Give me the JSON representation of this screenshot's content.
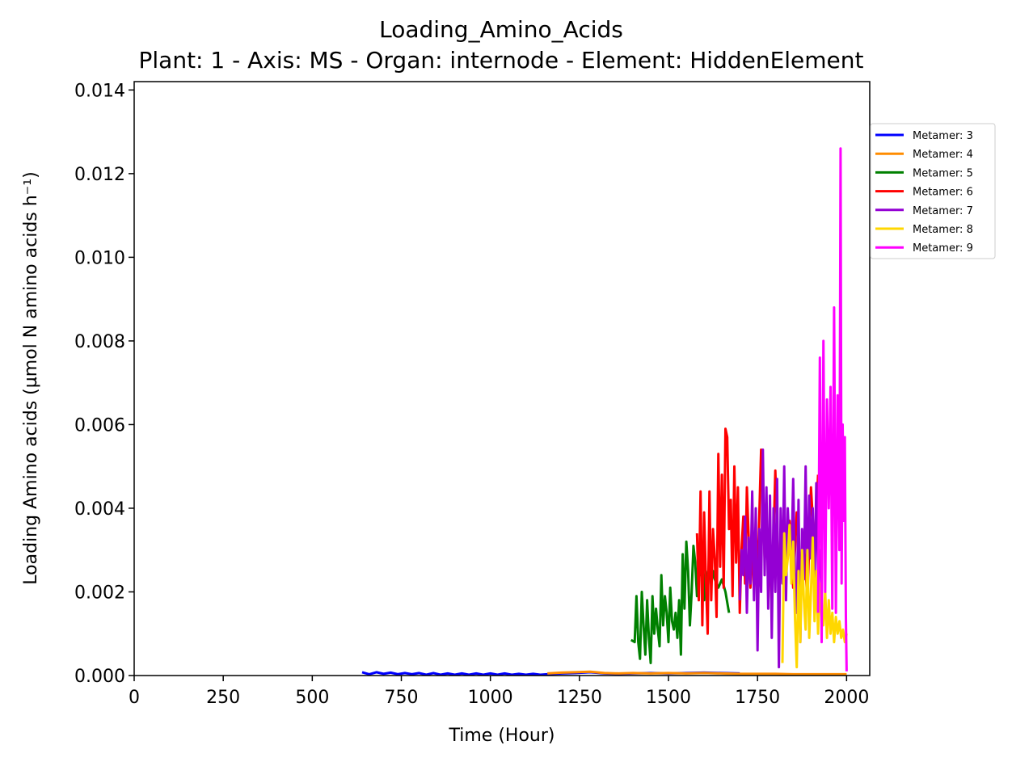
{
  "chart_data": {
    "type": "line",
    "title": "Loading_Amino_Acids",
    "subtitle": "Plant: 1 - Axis: MS - Organ: internode - Element: HiddenElement",
    "xlabel": "Time (Hour)",
    "ylabel": "Loading Amino acids (µmol N amino acids h⁻¹)",
    "xlim": [
      0,
      2065
    ],
    "ylim": [
      0,
      0.0142
    ],
    "xticks": [
      "0",
      "250",
      "500",
      "750",
      "1000",
      "1250",
      "1500",
      "1750",
      "2000"
    ],
    "yticks": [
      "0.000",
      "0.002",
      "0.004",
      "0.006",
      "0.008",
      "0.010",
      "0.012",
      "0.014"
    ],
    "grid": false,
    "legend_position": "right-outside",
    "series": [
      {
        "name": "Metamer: 3",
        "color": "#0000ff",
        "x": [
          640,
          660,
          680,
          700,
          720,
          740,
          760,
          780,
          800,
          820,
          840,
          860,
          880,
          900,
          920,
          940,
          960,
          980,
          1000,
          1020,
          1040,
          1060,
          1080,
          1100,
          1120,
          1140,
          1160,
          1200,
          1240,
          1280,
          1320,
          1360,
          1400,
          1450,
          1500,
          1550,
          1600,
          1650,
          1700
        ],
        "y": [
          8e-05,
          3e-05,
          8e-05,
          4e-05,
          7e-05,
          3e-05,
          6e-05,
          3e-05,
          6e-05,
          2e-05,
          6e-05,
          2e-05,
          5e-05,
          2e-05,
          5e-05,
          2e-05,
          5e-05,
          2e-05,
          5e-05,
          2e-05,
          5e-05,
          2e-05,
          4e-05,
          2e-05,
          4e-05,
          2e-05,
          3e-05,
          5e-05,
          6e-05,
          8e-05,
          5e-05,
          4e-05,
          5e-05,
          6e-05,
          5e-05,
          6e-05,
          7e-05,
          6e-05,
          5e-05
        ]
      },
      {
        "name": "Metamer: 4",
        "color": "#ff8c00",
        "x": [
          1160,
          1200,
          1240,
          1280,
          1320,
          1360,
          1400,
          1450,
          1500,
          1550,
          1600,
          1650,
          1700,
          1750,
          1800,
          1850,
          1900,
          1950,
          2000
        ],
        "y": [
          5e-05,
          7e-05,
          8e-05,
          9e-05,
          6e-05,
          5e-05,
          6e-05,
          5e-05,
          6e-05,
          5e-05,
          6e-05,
          5e-05,
          4e-05,
          4e-05,
          4e-05,
          3e-05,
          3e-05,
          3e-05,
          3e-05
        ]
      },
      {
        "name": "Metamer: 5",
        "color": "#008000",
        "x": [
          1395,
          1405,
          1410,
          1415,
          1420,
          1425,
          1430,
          1435,
          1440,
          1445,
          1450,
          1455,
          1460,
          1465,
          1470,
          1475,
          1480,
          1485,
          1490,
          1495,
          1500,
          1505,
          1510,
          1515,
          1520,
          1525,
          1530,
          1535,
          1540,
          1545,
          1550,
          1555,
          1560,
          1565,
          1570,
          1575,
          1580,
          1585,
          1590,
          1595,
          1600,
          1605,
          1610,
          1615,
          1620,
          1625,
          1630,
          1640,
          1650,
          1660,
          1670
        ],
        "y": [
          0.00085,
          0.0008,
          0.0019,
          0.0008,
          0.0004,
          0.002,
          0.0012,
          0.0005,
          0.0018,
          0.0009,
          0.0003,
          0.0019,
          0.001,
          0.0016,
          0.0011,
          0.0007,
          0.0024,
          0.0012,
          0.0019,
          0.0015,
          0.0008,
          0.0021,
          0.0013,
          0.0011,
          0.0015,
          0.0009,
          0.0018,
          0.0005,
          0.0029,
          0.0016,
          0.0032,
          0.0025,
          0.0012,
          0.002,
          0.0031,
          0.0027,
          0.0019,
          0.0028,
          0.0024,
          0.003,
          0.0018,
          0.0025,
          0.002,
          0.0027,
          0.0022,
          0.0025,
          0.0023,
          0.0021,
          0.0023,
          0.002,
          0.0015
        ]
      },
      {
        "name": "Metamer: 6",
        "color": "#ff0000",
        "x": [
          1580,
          1585,
          1590,
          1595,
          1600,
          1605,
          1610,
          1615,
          1620,
          1625,
          1630,
          1635,
          1640,
          1645,
          1650,
          1655,
          1660,
          1665,
          1670,
          1675,
          1680,
          1685,
          1690,
          1695,
          1700,
          1705,
          1710,
          1715,
          1720,
          1730,
          1740,
          1750,
          1760,
          1770,
          1780,
          1790,
          1800,
          1810,
          1820,
          1830,
          1840,
          1850,
          1860,
          1870,
          1880,
          1890,
          1900,
          1910,
          1920
        ],
        "y": [
          0.0034,
          0.0018,
          0.0044,
          0.0012,
          0.0039,
          0.0023,
          0.001,
          0.0044,
          0.0018,
          0.0035,
          0.0028,
          0.0014,
          0.0053,
          0.0026,
          0.0048,
          0.0021,
          0.0059,
          0.0057,
          0.0035,
          0.0042,
          0.0019,
          0.005,
          0.0027,
          0.0045,
          0.0015,
          0.003,
          0.0038,
          0.0022,
          0.0045,
          0.0021,
          0.0034,
          0.0023,
          0.0054,
          0.0028,
          0.0033,
          0.0017,
          0.0049,
          0.0023,
          0.0033,
          0.0025,
          0.0037,
          0.0021,
          0.0039,
          0.0025,
          0.0032,
          0.0018,
          0.0045,
          0.003,
          0.0048
        ]
      },
      {
        "name": "Metamer: 7",
        "color": "#9400d3",
        "x": [
          1700,
          1705,
          1710,
          1715,
          1720,
          1725,
          1730,
          1735,
          1740,
          1745,
          1750,
          1755,
          1760,
          1765,
          1770,
          1775,
          1780,
          1785,
          1790,
          1795,
          1800,
          1805,
          1810,
          1815,
          1820,
          1825,
          1830,
          1835,
          1840,
          1845,
          1850,
          1855,
          1860,
          1865,
          1870,
          1875,
          1880,
          1885,
          1890,
          1895,
          1900,
          1905,
          1910,
          1915,
          1920,
          1925,
          1930
        ],
        "y": [
          0.0018,
          0.003,
          0.0024,
          0.0038,
          0.0015,
          0.0033,
          0.0022,
          0.0044,
          0.0018,
          0.004,
          0.0006,
          0.0035,
          0.002,
          0.0054,
          0.0024,
          0.0045,
          0.0016,
          0.0043,
          0.0009,
          0.004,
          0.002,
          0.0047,
          0.0002,
          0.004,
          0.0022,
          0.005,
          0.0018,
          0.004,
          0.003,
          0.0027,
          0.0047,
          0.0024,
          0.0015,
          0.0042,
          0.0008,
          0.0035,
          0.0023,
          0.005,
          0.002,
          0.0043,
          0.0028,
          0.004,
          0.0022,
          0.0046,
          0.0024,
          0.003,
          0.0018
        ]
      },
      {
        "name": "Metamer: 8",
        "color": "#ffd700",
        "x": [
          1820,
          1825,
          1830,
          1835,
          1840,
          1845,
          1850,
          1855,
          1860,
          1865,
          1870,
          1875,
          1880,
          1885,
          1890,
          1895,
          1900,
          1905,
          1910,
          1915,
          1920,
          1925,
          1930,
          1935,
          1940,
          1945,
          1950,
          1955,
          1960,
          1965,
          1970,
          1975,
          1980,
          1985,
          1990,
          1995,
          2000
        ],
        "y": [
          0.0003,
          0.0034,
          0.0024,
          0.0028,
          0.0036,
          0.0022,
          0.0032,
          0.0014,
          0.0002,
          0.0025,
          0.0008,
          0.003,
          0.0018,
          0.0011,
          0.003,
          0.0009,
          0.002,
          0.0033,
          0.0013,
          0.0025,
          0.001,
          0.0022,
          0.0014,
          0.0012,
          0.002,
          0.0009,
          0.0018,
          0.001,
          0.0015,
          0.0008,
          0.0014,
          0.001,
          0.0013,
          0.0009,
          0.0011,
          0.0008,
          0.001
        ]
      },
      {
        "name": "Metamer: 9",
        "color": "#ff00ff",
        "x": [
          1920,
          1925,
          1930,
          1935,
          1940,
          1945,
          1950,
          1955,
          1960,
          1965,
          1970,
          1975,
          1980,
          1983,
          1986,
          1989,
          1992,
          1995,
          1998,
          2000
        ],
        "y": [
          0.0015,
          0.0076,
          0.0008,
          0.008,
          0.002,
          0.0066,
          0.004,
          0.0069,
          0.0016,
          0.0088,
          0.0015,
          0.0067,
          0.003,
          0.0126,
          0.0022,
          0.006,
          0.0037,
          0.0057,
          0.0014,
          0.0001
        ]
      }
    ]
  }
}
